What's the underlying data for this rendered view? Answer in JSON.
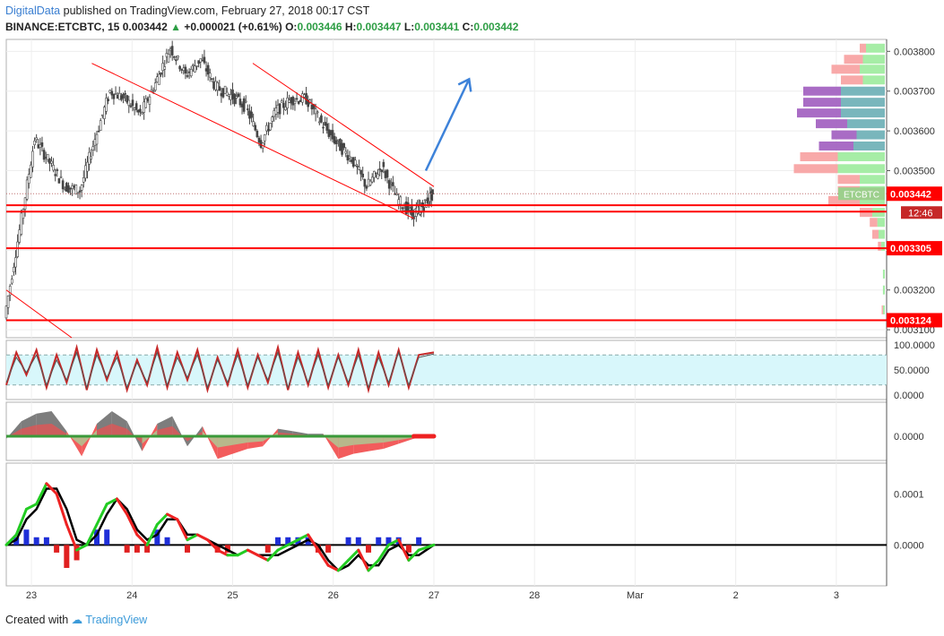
{
  "header": {
    "publisher": "DigitalData",
    "published_text": "published on TradingView.com, February 27, 2018 00:17 CST",
    "symbol": "BINANCE:ETCBTC, 15",
    "last": "0.003442",
    "change": "+0.000021 (+0.61%)",
    "o_label": "O:",
    "o": "0.003446",
    "h_label": "H:",
    "h": "0.003447",
    "l_label": "L:",
    "l": "0.003441",
    "c_label": "C:",
    "c": "0.003442"
  },
  "footer": {
    "created_with": "Created with",
    "brand": "TradingView"
  },
  "colors": {
    "grid": "#eeeeee",
    "candle": "#444444",
    "redline": "#ff0000",
    "arrow": "#3d82d9",
    "stoch_fill": "#d8f7fb",
    "green": "#22cc22",
    "red": "#ee2222",
    "black": "#000000",
    "blue": "#1f2fd8"
  },
  "chart_data": [
    {
      "type": "candlestick",
      "pane": "price",
      "ylim": [
        0.00308,
        0.00383
      ],
      "x_ticks": [
        "23",
        "24",
        "25",
        "26",
        "27",
        "28",
        "Mar",
        "2",
        "3"
      ],
      "y_ticks": [
        "0.003100",
        "0.003200",
        "0.003300",
        "0.003500",
        "0.003600",
        "0.003700",
        "0.003800"
      ],
      "symbol_tag": "ETCBTC",
      "price_labels": [
        {
          "value": 0.003442,
          "text": "0.003442"
        },
        {
          "value": 0.003305,
          "text": "0.003305"
        },
        {
          "value": 0.003124,
          "text": "0.003124"
        }
      ],
      "countdown": "12:46",
      "x": [
        22.75,
        22.9,
        23.05,
        23.2,
        23.35,
        23.5,
        23.65,
        23.8,
        23.95,
        24.1,
        24.25,
        24.4,
        24.55,
        24.7,
        24.85,
        25.0,
        25.15,
        25.3,
        25.45,
        25.6,
        25.75,
        25.9,
        26.05,
        26.2,
        26.35,
        26.5,
        26.65,
        26.8,
        26.9,
        27.0
      ],
      "close": [
        0.00313,
        0.00335,
        0.00358,
        0.00352,
        0.00346,
        0.00345,
        0.00358,
        0.0037,
        0.00368,
        0.00364,
        0.00372,
        0.00381,
        0.00374,
        0.00378,
        0.00371,
        0.00369,
        0.00366,
        0.00357,
        0.00365,
        0.00368,
        0.00368,
        0.00362,
        0.00357,
        0.00353,
        0.00346,
        0.00351,
        0.00343,
        0.00339,
        0.00341,
        0.003442
      ],
      "horizontal_levels": [
        0.003413,
        0.003397,
        0.003305,
        0.003124
      ],
      "trendlines": [
        {
          "from": [
            23.6,
            0.00377
          ],
          "to": [
            26.8,
            0.00338
          ]
        },
        {
          "from": [
            25.2,
            0.00377
          ],
          "to": [
            27.0,
            0.00346
          ]
        },
        {
          "from": [
            22.75,
            0.0032
          ],
          "to": [
            23.4,
            0.00308
          ]
        }
      ],
      "arrow": {
        "from": [
          26.92,
          0.0035
        ],
        "to": [
          27.35,
          0.00373
        ]
      },
      "volume_profile": [
        {
          "price": 0.003808,
          "up": 0.3,
          "down": 0.1
        },
        {
          "price": 0.00378,
          "up": 0.35,
          "down": 0.3
        },
        {
          "price": 0.003755,
          "up": 0.4,
          "down": 0.45
        },
        {
          "price": 0.003728,
          "up": 0.35,
          "down": 0.35
        },
        {
          "price": 0.0037,
          "up": 0.7,
          "down": 0.6,
          "teal": true
        },
        {
          "price": 0.003672,
          "up": 0.7,
          "down": 0.6,
          "teal": true
        },
        {
          "price": 0.003645,
          "up": 0.7,
          "down": 0.7,
          "teal": true
        },
        {
          "price": 0.003618,
          "up": 0.6,
          "down": 0.5,
          "teal": true
        },
        {
          "price": 0.00359,
          "up": 0.45,
          "down": 0.4,
          "teal": true
        },
        {
          "price": 0.003562,
          "up": 0.5,
          "down": 0.55,
          "teal": true
        },
        {
          "price": 0.003535,
          "up": 0.75,
          "down": 0.6
        },
        {
          "price": 0.003505,
          "up": 0.75,
          "down": 0.7
        },
        {
          "price": 0.003478,
          "up": 0.4,
          "down": 0.35
        },
        {
          "price": 0.00345,
          "up": 0.4,
          "down": 0.35
        },
        {
          "price": 0.003425,
          "up": 0.4,
          "down": 0.5
        },
        {
          "price": 0.003395,
          "up": 0.2,
          "down": 0.2
        },
        {
          "price": 0.00337,
          "up": 0.12,
          "down": 0.12
        },
        {
          "price": 0.00334,
          "up": 0.1,
          "down": 0.1
        },
        {
          "price": 0.00331,
          "up": 0.06,
          "down": 0.05
        },
        {
          "price": 0.00324,
          "up": 0.03,
          "down": 0.0
        },
        {
          "price": 0.0032,
          "up": 0.03,
          "down": 0.0
        },
        {
          "price": 0.00315,
          "up": 0.03,
          "down": 0.02
        }
      ]
    },
    {
      "type": "line",
      "pane": "stochastic",
      "ylim": [
        0,
        100
      ],
      "y_ticks": [
        "100.0000",
        "50.0000",
        "0.0000"
      ],
      "band": [
        20,
        80
      ],
      "x": [
        22.75,
        22.85,
        22.95,
        23.05,
        23.15,
        23.25,
        23.35,
        23.45,
        23.55,
        23.65,
        23.75,
        23.85,
        23.95,
        24.05,
        24.15,
        24.25,
        24.35,
        24.45,
        24.55,
        24.65,
        24.75,
        24.85,
        24.95,
        25.05,
        25.15,
        25.25,
        25.35,
        25.45,
        25.55,
        25.65,
        25.75,
        25.85,
        25.95,
        26.05,
        26.15,
        26.25,
        26.35,
        26.45,
        26.55,
        26.65,
        26.75,
        26.85,
        27.0
      ],
      "series": [
        {
          "values": [
            20,
            85,
            40,
            90,
            15,
            80,
            25,
            95,
            10,
            90,
            30,
            85,
            10,
            70,
            20,
            95,
            15,
            85,
            30,
            90,
            10,
            75,
            20,
            90,
            15,
            80,
            25,
            95,
            10,
            85,
            20,
            90,
            15,
            80,
            20,
            90,
            10,
            85,
            20,
            90,
            15,
            80,
            85
          ]
        },
        {
          "values": [
            25,
            75,
            45,
            80,
            20,
            70,
            30,
            85,
            15,
            80,
            35,
            75,
            15,
            65,
            25,
            85,
            20,
            75,
            35,
            80,
            15,
            70,
            25,
            80,
            20,
            75,
            30,
            85,
            15,
            75,
            25,
            80,
            20,
            75,
            25,
            80,
            15,
            75,
            25,
            85,
            20,
            75,
            82
          ]
        }
      ]
    },
    {
      "type": "area",
      "pane": "momentum",
      "y_ticks": [
        "0.0000"
      ],
      "x": [
        22.75,
        22.9,
        23.05,
        23.2,
        23.35,
        23.5,
        23.65,
        23.8,
        23.95,
        24.1,
        24.25,
        24.4,
        24.55,
        24.7,
        24.85,
        25.0,
        25.15,
        25.3,
        25.45,
        25.6,
        25.75,
        25.9,
        26.05,
        26.2,
        26.35,
        26.5,
        26.65,
        26.8,
        27.0
      ],
      "values": [
        -0.1,
        0.6,
        0.9,
        1.0,
        0.2,
        -0.8,
        0.5,
        1.0,
        0.6,
        -0.6,
        0.5,
        0.8,
        -0.4,
        0.4,
        -0.9,
        -0.7,
        -0.5,
        -0.4,
        0.3,
        0.2,
        0.1,
        0.1,
        -0.9,
        -0.7,
        -0.6,
        -0.5,
        -0.3,
        -0.1,
        0.05
      ]
    },
    {
      "type": "line",
      "pane": "macd",
      "ylim": [
        -8e-05,
        0.00016
      ],
      "y_ticks": [
        "0.0001",
        "0.0000"
      ],
      "x": [
        22.75,
        22.85,
        22.95,
        23.05,
        23.15,
        23.25,
        23.35,
        23.45,
        23.55,
        23.65,
        23.75,
        23.85,
        23.95,
        24.05,
        24.15,
        24.25,
        24.35,
        24.45,
        24.55,
        24.65,
        24.75,
        24.85,
        24.95,
        25.05,
        25.15,
        25.25,
        25.35,
        25.45,
        25.55,
        25.65,
        25.75,
        25.85,
        25.95,
        26.05,
        26.15,
        26.25,
        26.35,
        26.45,
        26.55,
        26.65,
        26.75,
        26.85,
        27.0
      ],
      "series": [
        {
          "values": [
            0.0,
            2e-05,
            7e-05,
            8e-05,
            0.00012,
            0.0001,
            4e-05,
            -1e-05,
            0.0,
            4e-05,
            8e-05,
            9e-05,
            6e-05,
            2e-05,
            0.0,
            4e-05,
            6e-05,
            5e-05,
            1e-05,
            2e-05,
            1e-05,
            -1e-05,
            -2e-05,
            -2e-05,
            -1e-05,
            -2e-05,
            -3e-05,
            -1e-05,
            0.0,
            1e-05,
            2e-05,
            -1e-05,
            -4e-05,
            -5e-05,
            -3e-05,
            -1e-05,
            -5e-05,
            -3e-05,
            0.0,
            1e-05,
            -3e-05,
            -1e-05,
            0.0
          ]
        },
        {
          "values": [
            0.0,
            1e-05,
            5e-05,
            7e-05,
            0.00011,
            0.00011,
            7e-05,
            1e-05,
            0.0,
            2e-05,
            6e-05,
            9e-05,
            7e-05,
            3e-05,
            1e-05,
            2e-05,
            5e-05,
            5e-05,
            2e-05,
            2e-05,
            1e-05,
            0.0,
            -1e-05,
            -2e-05,
            -1e-05,
            -2e-05,
            -2e-05,
            -2e-05,
            -1e-05,
            0.0,
            1e-05,
            0.0,
            -3e-05,
            -5e-05,
            -4e-05,
            -2e-05,
            -4e-05,
            -4e-05,
            -1e-05,
            0.0,
            -2e-05,
            -2e-05,
            0.0
          ]
        }
      ],
      "histogram": [
        0.0,
        1e-05,
        2e-05,
        1e-05,
        1e-05,
        -1e-05,
        -3e-05,
        -2e-05,
        0.0,
        2e-05,
        2e-05,
        0.0,
        -1e-05,
        -1e-05,
        -1e-05,
        2e-05,
        1e-05,
        0.0,
        -1e-05,
        0.0,
        0.0,
        -1e-05,
        -1e-05,
        0.0,
        0.0,
        0.0,
        -1e-05,
        1e-05,
        1e-05,
        1e-05,
        1e-05,
        -1e-05,
        -1e-05,
        0.0,
        1e-05,
        1e-05,
        -1e-05,
        1e-05,
        1e-05,
        1e-05,
        -1e-05,
        1e-05,
        0.0
      ]
    }
  ]
}
